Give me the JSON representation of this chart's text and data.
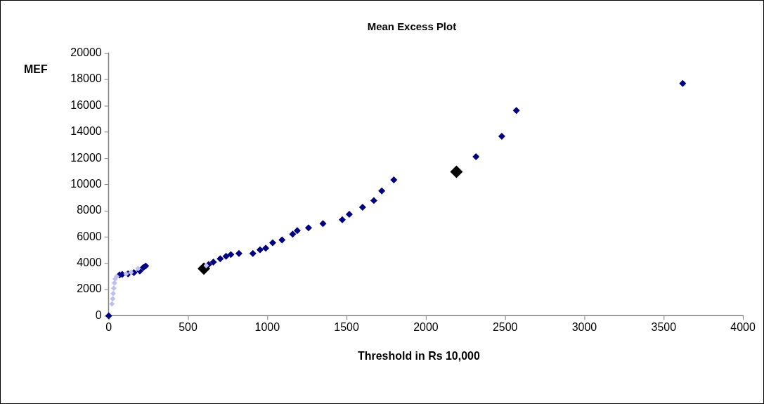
{
  "chart_data": {
    "type": "scatter",
    "title": "Mean Excess Plot",
    "xlabel": "Threshold in Rs 10,000",
    "ylabel": "MEF",
    "xlim": [
      0,
      4000
    ],
    "xticks": [
      0,
      500,
      1000,
      1500,
      2000,
      2500,
      3000,
      3500,
      4000
    ],
    "ylim": [
      0,
      20000
    ],
    "yticks": [
      0,
      2000,
      4000,
      6000,
      8000,
      10000,
      12000,
      14000,
      16000,
      18000,
      20000
    ],
    "grid": false,
    "legend": false,
    "marker": "diamond",
    "series": [
      {
        "color": "#c0c0f0",
        "x": [
          20,
          25,
          28,
          32,
          36,
          40,
          50,
          110,
          140,
          185,
          615
        ],
        "values": [
          900,
          1300,
          1700,
          2100,
          2500,
          2800,
          3000,
          3200,
          3300,
          3600,
          3820
        ]
      },
      {
        "color": "#000080",
        "x": [
          0,
          68,
          85,
          122,
          159,
          196,
          218,
          233,
          630,
          660,
          703,
          740,
          770,
          821,
          909,
          954,
          990,
          1034,
          1093,
          1160,
          1189,
          1260,
          1351,
          1473,
          1517,
          1601,
          1672,
          1722,
          1798,
          2316,
          2479,
          2571,
          3620
        ],
        "values": [
          0,
          3110,
          3150,
          3200,
          3290,
          3410,
          3680,
          3790,
          3910,
          4090,
          4350,
          4530,
          4660,
          4750,
          4750,
          5030,
          5150,
          5560,
          5780,
          6220,
          6490,
          6700,
          7020,
          7320,
          7730,
          8270,
          8780,
          9510,
          10350,
          12120,
          13670,
          15640,
          17700
        ]
      },
      {
        "color": "#000000",
        "x": [
          600,
          2193
        ],
        "values": [
          3590,
          10970
        ]
      }
    ]
  }
}
